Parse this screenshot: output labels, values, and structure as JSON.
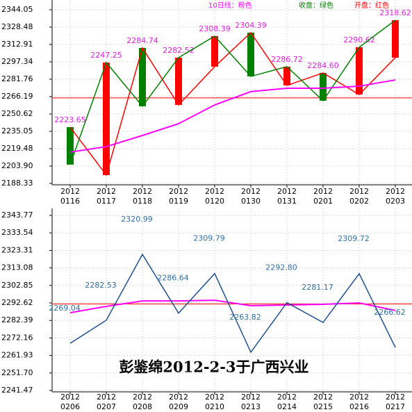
{
  "chart_data": [
    {
      "type": "candlestick",
      "categories": [
        [
          "2012",
          "0116"
        ],
        [
          "2012",
          "0117"
        ],
        [
          "2012",
          "0118"
        ],
        [
          "2012",
          "0119"
        ],
        [
          "2012",
          "0120"
        ],
        [
          "2012",
          "0130"
        ],
        [
          "2012",
          "0131"
        ],
        [
          "2012",
          "0201"
        ],
        [
          "2012",
          "0202"
        ],
        [
          "2012",
          "0203"
        ]
      ],
      "series": [
        {
          "name": "10日线：粉色",
          "color": "#ff00ff",
          "values": [
            2216.4,
            2221.3,
            2231.3,
            2241.9,
            2258.7,
            2270.6,
            2273.7,
            2273.7,
            2275.5,
            2281.1
          ]
        },
        {
          "name": "收盘：绿色",
          "color": "#008000",
          "values": [
            2205.2,
            2296.7,
            2257.5,
            2301.1,
            2320.4,
            2284.3,
            2293.0,
            2262.5,
            2310.4,
            2334.7
          ]
        },
        {
          "name": "开盘：红色",
          "color": "#ff0000",
          "values": [
            2238.8,
            2195.8,
            2309.8,
            2258.7,
            2293.0,
            2323.5,
            2276.2,
            2287.4,
            2268.0,
            2301.1
          ]
        }
      ],
      "annotations": [
        "2223.65",
        "2247.25",
        "2284.74",
        "2282.52",
        "2308.39",
        "2304.39",
        "2286.72",
        "2284.60",
        "2290.62",
        "2318.62"
      ],
      "annotation_color": "#e020e0",
      "hline": 2265.0,
      "hline_color": "#ff0000",
      "ylim": [
        2188.33,
        2344.05
      ],
      "yticks": [
        2344.05,
        2328.48,
        2312.91,
        2297.34,
        2281.76,
        2266.19,
        2250.62,
        2235.05,
        2219.48,
        {
          "value": 2203.9,
          "label": "2203.90"
        },
        2188.33
      ],
      "grid": true
    },
    {
      "type": "line",
      "categories": [
        [
          "2012",
          "0206"
        ],
        [
          "2012",
          "0207"
        ],
        [
          "2012",
          "0208"
        ],
        [
          "2012",
          "0209"
        ],
        [
          "2012",
          "0210"
        ],
        [
          "2012",
          "0213"
        ],
        [
          "2012",
          "0214"
        ],
        [
          "2012",
          "0215"
        ],
        [
          "2012",
          "0216"
        ],
        [
          "2012",
          "0217"
        ]
      ],
      "series": [
        {
          "color": "#1f4e8c",
          "values": [
            2269.04,
            2282.53,
            2320.99,
            2286.64,
            2309.79,
            2263.82,
            2292.8,
            2281.17,
            2309.72,
            2266.62
          ],
          "value_labels": [
            "2269.04",
            "2282.53",
            "2320.99",
            "2286.64",
            "2309.79",
            "2263.82",
            "2292.80",
            "2281.17",
            "2309.72",
            "2266.62"
          ]
        },
        {
          "color": "#ff00ff",
          "values": [
            2286.9,
            2290.6,
            2293.8,
            2293.8,
            2294.2,
            2291.0,
            2291.4,
            2291.8,
            2292.6,
            2288.2
          ]
        }
      ],
      "label_color": "#2f6fa8",
      "hline": 2292.0,
      "hline_color": "#ff0000",
      "ylim": [
        2241.47,
        2343.77
      ],
      "yticks": [
        2343.77,
        2333.54,
        2323.31,
        2313.08,
        2302.85,
        2292.62,
        2282.39,
        2272.16,
        2261.93,
        {
          "value": 2251.7,
          "label": "2251.70"
        },
        2241.47
      ],
      "grid": true
    },
    {
      "type": "text",
      "title": "彭鉴绵2012-2-3于广西兴业"
    }
  ]
}
